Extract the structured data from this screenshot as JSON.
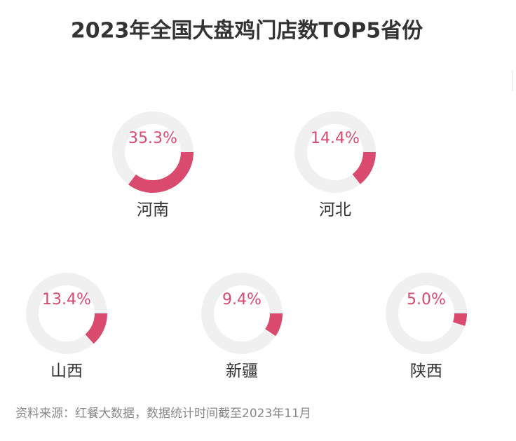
{
  "chart_data": {
    "type": "donut",
    "title": "2023年全国大盘鸡门店数TOP5省份",
    "categories": [
      "河南",
      "河北",
      "山西",
      "新疆",
      "陕西"
    ],
    "values": [
      35.3,
      14.4,
      13.4,
      9.4,
      5.0
    ],
    "value_labels": [
      "35.3%",
      "14.4%",
      "13.4%",
      "9.4%",
      "5.0%"
    ],
    "color": "#d94a6e",
    "track_color": "#f0f0f0",
    "note": "资料来源：红餐大数据，数据统计时间截至2023年11月"
  }
}
